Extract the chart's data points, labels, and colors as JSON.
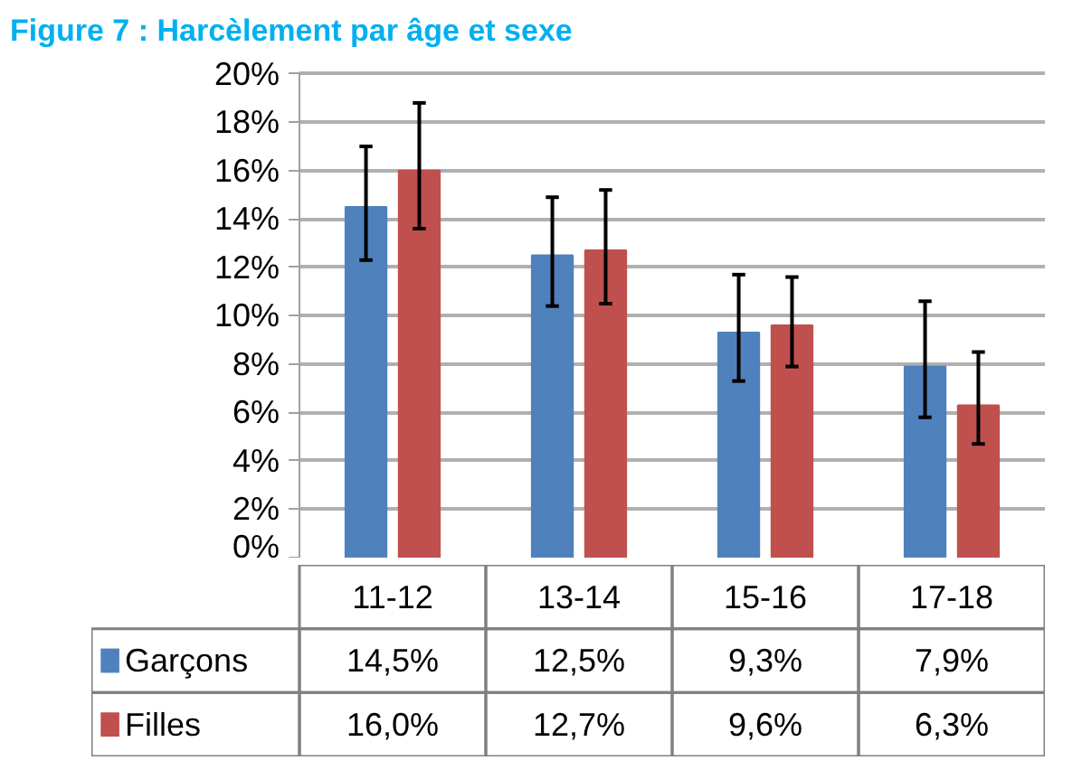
{
  "chart_data": {
    "type": "bar",
    "title": "Figure 7 : Harcèlement par âge et sexe",
    "categories": [
      "11-12",
      "13-14",
      "15-16",
      "17-18"
    ],
    "series": [
      {
        "name": "Garçons",
        "color": "#4f81bd",
        "values": [
          14.5,
          12.5,
          9.3,
          7.9
        ],
        "errors": [
          [
            12.3,
            17.0
          ],
          [
            10.4,
            14.9
          ],
          [
            7.3,
            11.7
          ],
          [
            5.8,
            10.6
          ]
        ],
        "value_labels": [
          "14,5%",
          "12,5%",
          "9,3%",
          "7,9%"
        ]
      },
      {
        "name": "Filles",
        "color": "#c0504d",
        "values": [
          16.0,
          12.7,
          9.6,
          6.3
        ],
        "errors": [
          [
            13.6,
            18.8
          ],
          [
            10.5,
            15.2
          ],
          [
            7.9,
            11.6
          ],
          [
            4.7,
            8.5
          ]
        ],
        "value_labels": [
          "16,0%",
          "12,7%",
          "9,6%",
          "6,3%"
        ]
      }
    ],
    "ylim": [
      0,
      20
    ],
    "yticks": [
      {
        "value": 0,
        "label": "0%"
      },
      {
        "value": 2,
        "label": "2%"
      },
      {
        "value": 4,
        "label": "4%"
      },
      {
        "value": 6,
        "label": "6%"
      },
      {
        "value": 8,
        "label": "8%"
      },
      {
        "value": 10,
        "label": "10%"
      },
      {
        "value": 12,
        "label": "12%"
      },
      {
        "value": 14,
        "label": "14%"
      },
      {
        "value": 16,
        "label": "16%"
      },
      {
        "value": 18,
        "label": "18%"
      },
      {
        "value": 20,
        "label": "20%"
      }
    ],
    "grid": "y",
    "legend": "bottom"
  }
}
